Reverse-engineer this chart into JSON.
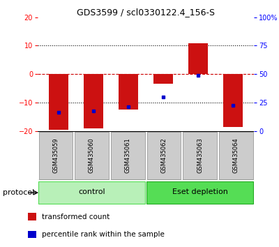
{
  "title": "GDS3599 / scl0330122.4_156-S",
  "samples": [
    "GSM435059",
    "GSM435060",
    "GSM435061",
    "GSM435062",
    "GSM435063",
    "GSM435064"
  ],
  "red_bars": [
    -19.5,
    -19.0,
    -12.5,
    -3.5,
    10.8,
    -18.5
  ],
  "blue_dots": [
    -13.5,
    -13.0,
    -11.5,
    -8.0,
    -0.5,
    -11.0
  ],
  "ylim": [
    -20,
    20
  ],
  "yticks_left": [
    -20,
    -10,
    0,
    10,
    20
  ],
  "right_tick_positions": [
    20,
    10,
    0,
    -10,
    -20
  ],
  "right_tick_labels": [
    "100%",
    "75",
    "50",
    "25",
    "0"
  ],
  "groups": [
    {
      "label": "control",
      "color_light": "#b8f0b8",
      "color_dark": "#55dd55"
    },
    {
      "label": "Eset depletion",
      "color_light": "#55dd55",
      "color_dark": "#22aa22"
    }
  ],
  "protocol_label": "protocol",
  "legend_red": "transformed count",
  "legend_blue": "percentile rank within the sample",
  "bar_color": "#cc1111",
  "dot_color": "#0000cc",
  "zero_line_color": "#cc0000",
  "label_bg_color": "#cccccc",
  "bar_width": 0.55
}
